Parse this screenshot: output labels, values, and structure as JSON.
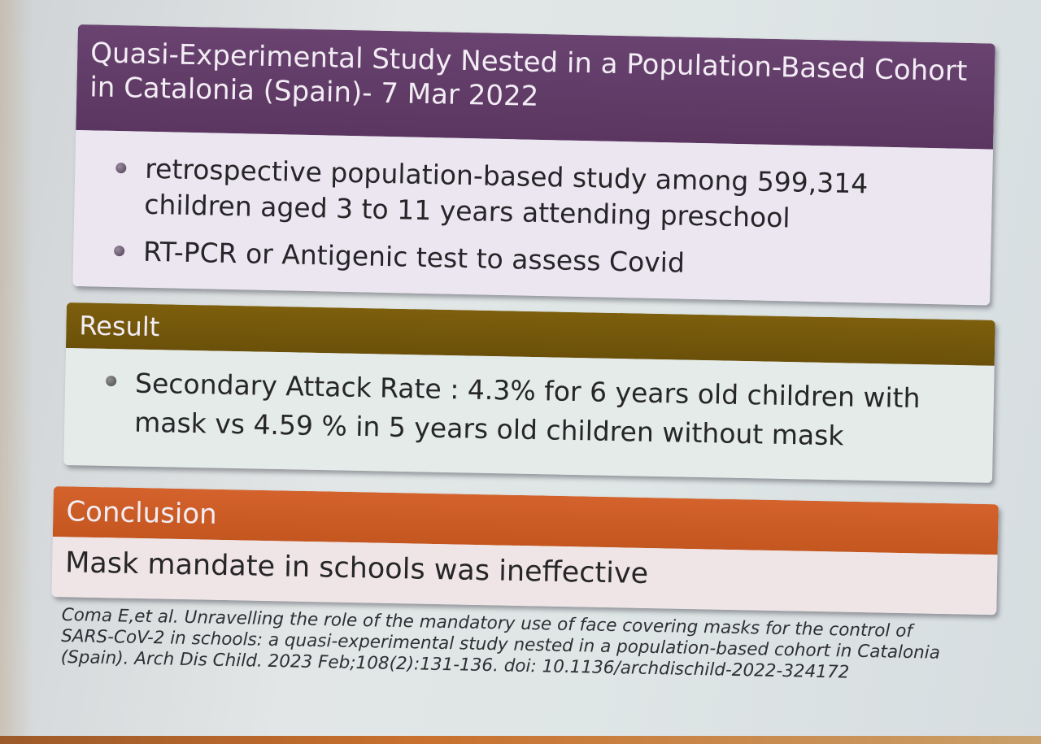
{
  "study_block": {
    "title": "Quasi-Experimental Study Nested in a Population-Based Cohort in Catalonia (Spain)- 7 Mar 2022",
    "bullets": [
      "retrospective population-based study among 599,314 children aged 3 to 11 years attending preschool",
      "RT-PCR or Antigenic test to assess Covid"
    ]
  },
  "result_block": {
    "title": "Result",
    "bullets": [
      "Secondary Attack Rate : 4.3% for 6 years old children with mask vs 4.59 % in 5 years old children without mask"
    ]
  },
  "conclusion_block": {
    "title": "Conclusion",
    "text": "Mask mandate in schools was ineffective"
  },
  "citation": "Coma E,et al. Unravelling the role of the mandatory use of face covering masks for the control of SARS-CoV-2 in schools: a quasi-experimental study nested in a population-based cohort in Catalonia (Spain). Arch Dis Child. 2023 Feb;108(2):131-136. doi: 10.1136/archdischild-2022-324172"
}
